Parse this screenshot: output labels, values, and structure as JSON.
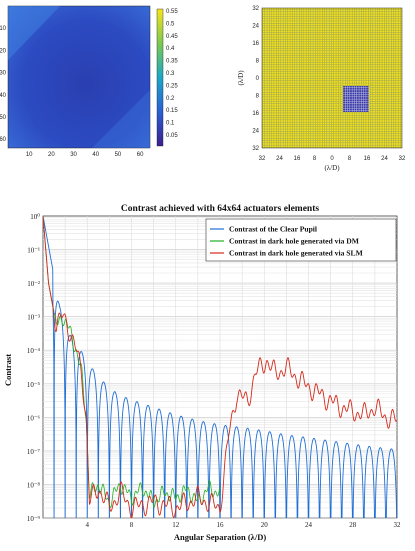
{
  "heatmap_panel": {
    "x_ticks": [
      "10",
      "20",
      "30",
      "40",
      "50",
      "60"
    ],
    "y_ticks": [
      "10",
      "20",
      "30",
      "40",
      "50",
      "60"
    ],
    "colorbar_ticks": [
      "0.55",
      "0.5",
      "0.45",
      "0.4",
      "0.35",
      "0.3",
      "0.25",
      "0.2",
      "0.15",
      "0.1",
      "0.05"
    ]
  },
  "mask_panel": {
    "x_ticks": [
      "32",
      "24",
      "16",
      "8",
      "0",
      "8",
      "16",
      "24",
      "32"
    ],
    "y_ticks": [
      "32",
      "24",
      "16",
      "8",
      "0",
      "8",
      "16",
      "24",
      "32"
    ],
    "xlabel": "(λ/D)",
    "ylabel": "(λ/D)"
  },
  "chart_data": {
    "type": "line",
    "title": "Contrast achieved with 64x64 actuators elements",
    "xlabel": "Angular Separation (λ/D)",
    "ylabel": "Contrast",
    "xlim": [
      0,
      32
    ],
    "ylim": [
      1e-09,
      1
    ],
    "y_scale": "log",
    "x_ticks": [
      "4",
      "8",
      "12",
      "16",
      "20",
      "24",
      "28",
      "32"
    ],
    "y_ticks": [
      "10⁰",
      "10⁻¹",
      "10⁻²",
      "10⁻³",
      "10⁻⁴",
      "10⁻⁵",
      "10⁻⁶",
      "10⁻⁷",
      "10⁻⁸",
      "10⁻⁹"
    ],
    "grid": true,
    "legend_position": "top-right",
    "series": [
      {
        "name": "Contrast of the Clear Pupil",
        "color": "#1f6fd6",
        "peaks": [
          [
            0,
            1.0
          ],
          [
            1.5,
            0.002
          ],
          [
            2.4,
            0.0003
          ],
          [
            3.4,
            0.0001
          ],
          [
            4.4,
            3e-05
          ],
          [
            5.4,
            1.2e-05
          ],
          [
            6.4,
            6e-06
          ],
          [
            7.4,
            4e-06
          ],
          [
            8.4,
            3e-06
          ],
          [
            10,
            2e-06
          ],
          [
            12,
            1.2e-06
          ],
          [
            14,
            8e-07
          ],
          [
            16,
            6e-07
          ],
          [
            18,
            5e-07
          ],
          [
            20,
            4e-07
          ],
          [
            22,
            3e-07
          ],
          [
            24,
            2.5e-07
          ],
          [
            26,
            2e-07
          ],
          [
            28,
            1.6e-07
          ],
          [
            30,
            1.3e-07
          ],
          [
            32,
            1.1e-07
          ]
        ]
      },
      {
        "name": "Contrast in dark hole generated via DM",
        "color": "#22b022",
        "points": [
          [
            0,
            1.0
          ],
          [
            0.5,
            0.01
          ],
          [
            1.2,
            0.0005
          ],
          [
            1.8,
            0.001
          ],
          [
            2.4,
            0.0004
          ],
          [
            3.0,
            0.0001
          ],
          [
            3.5,
            2e-05
          ],
          [
            3.9,
            1e-06
          ],
          [
            4.2,
            5e-09
          ],
          [
            5,
            1e-08
          ],
          [
            6,
            3e-09
          ],
          [
            7,
            1e-08
          ],
          [
            8,
            4e-09
          ],
          [
            9,
            8e-09
          ],
          [
            10,
            3e-09
          ],
          [
            11,
            6e-09
          ],
          [
            12,
            4e-09
          ],
          [
            13,
            7e-09
          ],
          [
            14,
            3e-09
          ],
          [
            15,
            8e-09
          ],
          [
            16,
            5e-09
          ]
        ]
      },
      {
        "name": "Contrast in dark hole generated via SLM",
        "color": "#d42a1a",
        "points": [
          [
            0,
            1.0
          ],
          [
            0.5,
            0.01
          ],
          [
            1.2,
            0.0006
          ],
          [
            1.8,
            0.001
          ],
          [
            2.4,
            0.0004
          ],
          [
            3.0,
            0.0001
          ],
          [
            3.5,
            2e-05
          ],
          [
            3.9,
            1e-06
          ],
          [
            4.2,
            3e-09
          ],
          [
            5,
            8e-09
          ],
          [
            6,
            2e-09
          ],
          [
            7,
            6e-09
          ],
          [
            8,
            2e-09
          ],
          [
            10,
            3e-09
          ],
          [
            12,
            2e-09
          ],
          [
            14,
            4e-09
          ],
          [
            16,
            2e-09
          ],
          [
            16.8,
            3e-07
          ],
          [
            17.5,
            5e-06
          ],
          [
            18.5,
            3e-06
          ],
          [
            19.2,
            2e-05
          ],
          [
            20.2,
            5e-05
          ],
          [
            21,
            2e-05
          ],
          [
            22,
            3e-05
          ],
          [
            23,
            1.5e-05
          ],
          [
            24,
            8e-06
          ],
          [
            25,
            5e-06
          ],
          [
            26,
            3e-06
          ],
          [
            27,
            2e-06
          ],
          [
            28,
            1.5e-06
          ],
          [
            29,
            1.2e-06
          ],
          [
            30,
            2e-06
          ],
          [
            31,
            1e-06
          ],
          [
            32,
            8e-07
          ]
        ]
      }
    ]
  }
}
